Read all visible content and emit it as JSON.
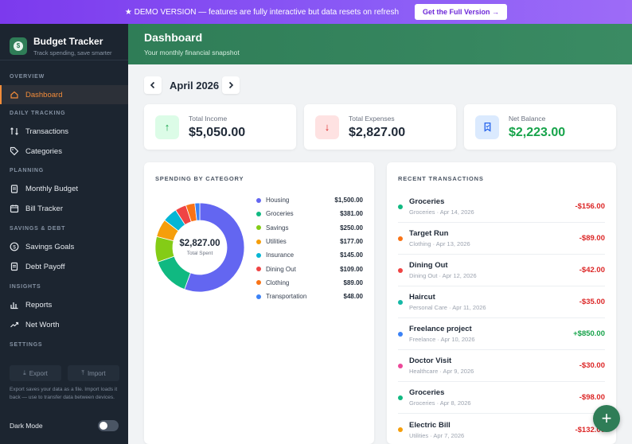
{
  "banner": {
    "text": "★ DEMO VERSION — features are fully interactive but data resets on refresh",
    "cta": "Get the Full Version →"
  },
  "brand": {
    "title": "Budget Tracker",
    "subtitle": "Track spending, save smarter"
  },
  "sidebar": {
    "sections": [
      {
        "label": "OVERVIEW",
        "items": [
          {
            "label": "Dashboard",
            "icon": "home-icon",
            "active": true
          }
        ]
      },
      {
        "label": "DAILY TRACKING",
        "items": [
          {
            "label": "Transactions",
            "icon": "swap-icon"
          },
          {
            "label": "Categories",
            "icon": "tag-icon"
          }
        ]
      },
      {
        "label": "PLANNING",
        "items": [
          {
            "label": "Monthly Budget",
            "icon": "clipboard-icon"
          },
          {
            "label": "Bill Tracker",
            "icon": "calendar-icon"
          }
        ]
      },
      {
        "label": "SAVINGS & DEBT",
        "items": [
          {
            "label": "Savings Goals",
            "icon": "dollar-icon"
          },
          {
            "label": "Debt Payoff",
            "icon": "card-icon"
          }
        ]
      },
      {
        "label": "INSIGHTS",
        "items": [
          {
            "label": "Reports",
            "icon": "bar-chart-icon"
          },
          {
            "label": "Net Worth",
            "icon": "trend-icon"
          }
        ]
      },
      {
        "label": "SETTINGS",
        "items": []
      }
    ],
    "export_label": "Export",
    "import_label": "Import",
    "note": "Export saves your data as a file. Import loads it back — use to transfer data between devices.",
    "dark_mode_label": "Dark Mode"
  },
  "header": {
    "title": "Dashboard",
    "subtitle": "Your monthly financial snapshot"
  },
  "month": {
    "label": "April 2026"
  },
  "stats": [
    {
      "label": "Total Income",
      "value": "$5,050.00",
      "icon": "arrow-up-icon",
      "color": "#16a34a",
      "bg": "#dcfce7"
    },
    {
      "label": "Total Expenses",
      "value": "$2,827.00",
      "icon": "arrow-down-icon",
      "color": "#dc2626",
      "bg": "#fee2e2"
    },
    {
      "label": "Net Balance",
      "value": "$2,223.00",
      "icon": "bookmark-icon",
      "color": "#2563eb",
      "bg": "#dbeafe",
      "value_color": "#16a34a"
    }
  ],
  "spending": {
    "title": "SPENDING BY CATEGORY",
    "center_value": "$2,827.00",
    "center_label": "Total Spent"
  },
  "chart_data": {
    "type": "pie",
    "title": "SPENDING BY CATEGORY",
    "categories": [
      "Housing",
      "Groceries",
      "Savings",
      "Utilities",
      "Insurance",
      "Dining Out",
      "Clothing",
      "Transportation"
    ],
    "values": [
      1500,
      381,
      250,
      177,
      145,
      109,
      89,
      48
    ],
    "labels": [
      "$1,500.00",
      "$381.00",
      "$250.00",
      "$177.00",
      "$145.00",
      "$109.00",
      "$89.00",
      "$48.00"
    ],
    "colors": [
      "#6366f1",
      "#10b981",
      "#84cc16",
      "#f59e0b",
      "#06b6d4",
      "#ef4444",
      "#f97316",
      "#3b82f6"
    ],
    "total": 2827,
    "legend": "right"
  },
  "recent": {
    "title": "RECENT TRANSACTIONS",
    "items": [
      {
        "name": "Groceries",
        "meta": "Groceries · Apr 14, 2026",
        "amount": "-$156.00",
        "color": "#10b981",
        "sign": "neg"
      },
      {
        "name": "Target Run",
        "meta": "Clothing · Apr 13, 2026",
        "amount": "-$89.00",
        "color": "#f97316",
        "sign": "neg"
      },
      {
        "name": "Dining Out",
        "meta": "Dining Out · Apr 12, 2026",
        "amount": "-$42.00",
        "color": "#ef4444",
        "sign": "neg"
      },
      {
        "name": "Haircut",
        "meta": "Personal Care · Apr 11, 2026",
        "amount": "-$35.00",
        "color": "#14b8a6",
        "sign": "neg"
      },
      {
        "name": "Freelance project",
        "meta": "Freelance · Apr 10, 2026",
        "amount": "+$850.00",
        "color": "#3b82f6",
        "sign": "pos"
      },
      {
        "name": "Doctor Visit",
        "meta": "Healthcare · Apr 9, 2026",
        "amount": "-$30.00",
        "color": "#ec4899",
        "sign": "neg"
      },
      {
        "name": "Groceries",
        "meta": "Groceries · Apr 8, 2026",
        "amount": "-$98.00",
        "color": "#10b981",
        "sign": "neg"
      },
      {
        "name": "Electric Bill",
        "meta": "Utilities · Apr 7, 2026",
        "amount": "-$132.00",
        "color": "#f59e0b",
        "sign": "neg"
      }
    ]
  },
  "fab": {
    "label": "+"
  }
}
